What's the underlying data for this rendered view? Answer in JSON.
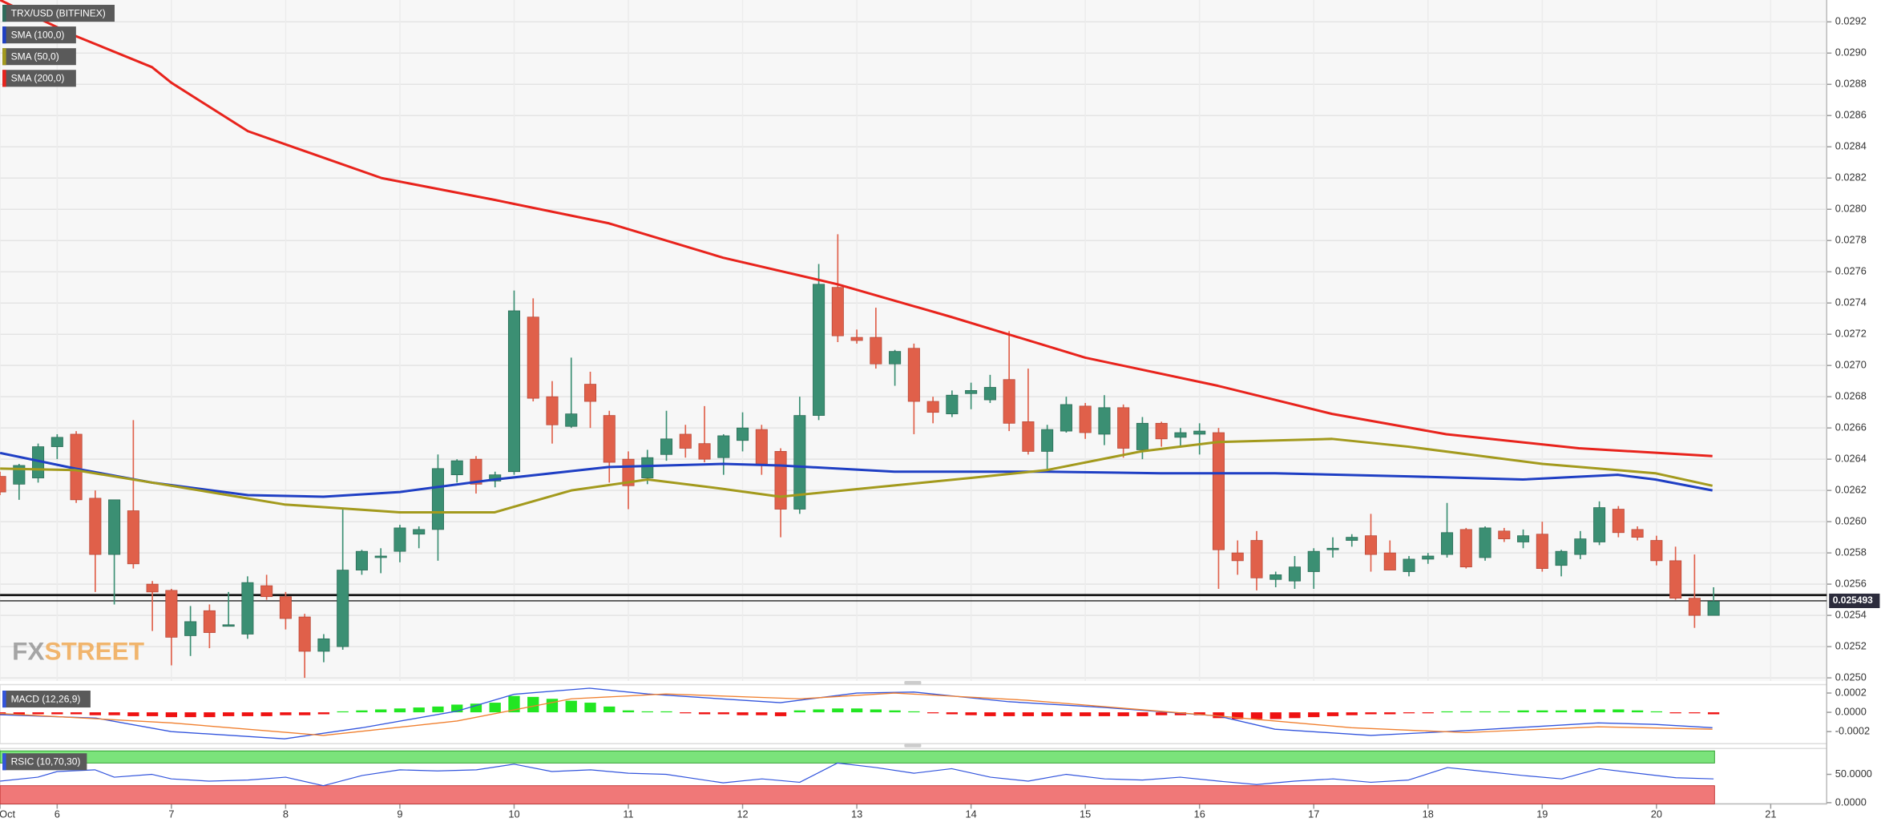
{
  "chart_data": {
    "type": "candlestick",
    "title": "TRX/USD (BITFINEX)",
    "up_color": "#3b8f73",
    "down_color": "#e0604a",
    "grid": true,
    "xlim": [
      5.5,
      21.49
    ],
    "xticks": [
      {
        "value": 5.5,
        "label": "Oct"
      },
      6,
      7,
      8,
      9,
      10,
      11,
      12,
      13,
      14,
      15,
      16,
      17,
      18,
      19,
      20,
      21
    ],
    "ylim": [
      0.02498,
      0.02934
    ],
    "yticks": [
      {
        "value": 0.025,
        "label": "0.0250"
      },
      0.0252,
      0.0254,
      0.0256,
      0.0258,
      {
        "value": 0.026,
        "label": "0.0260"
      },
      0.0262,
      0.0264,
      0.0266,
      0.0268,
      {
        "value": 0.027,
        "label": "0.0270"
      },
      0.0272,
      0.0274,
      0.0276,
      0.0278,
      {
        "value": 0.028,
        "label": "0.0280"
      },
      0.0282,
      0.0284,
      0.0286,
      0.0288,
      {
        "value": 0.029,
        "label": "0.0290"
      },
      0.0292
    ],
    "hlines": [
      0.02553
    ],
    "last_price": 0.025493,
    "watermark": [
      "FX",
      "STREET"
    ],
    "x": [
      5.5,
      5.6667,
      5.8333,
      6,
      6.1667,
      6.3333,
      6.5,
      6.6667,
      6.8333,
      7,
      7.1667,
      7.3333,
      7.5,
      7.6667,
      7.8333,
      8,
      8.1667,
      8.3333,
      8.5,
      8.6667,
      8.8333,
      9,
      9.1667,
      9.3333,
      9.5,
      9.6667,
      9.8333,
      10,
      10.1667,
      10.3333,
      10.5,
      10.6667,
      10.8333,
      11,
      11.1667,
      11.3333,
      11.5,
      11.6667,
      11.8333,
      12,
      12.1667,
      12.3333,
      12.5,
      12.6667,
      12.8333,
      13,
      13.1667,
      13.3333,
      13.5,
      13.6667,
      13.8333,
      14,
      14.1667,
      14.3333,
      14.5,
      14.6667,
      14.8333,
      15,
      15.1667,
      15.3333,
      15.5,
      15.6667,
      15.8333,
      16,
      16.1667,
      16.3333,
      16.5,
      16.6667,
      16.8333,
      17,
      17.1667,
      17.3333,
      17.5,
      17.6667,
      17.8333,
      18,
      18.1667,
      18.3333,
      18.5,
      18.6667,
      18.8333,
      19,
      19.1667,
      19.3333,
      19.5,
      19.6667,
      19.8333,
      20,
      20.1667,
      20.3333,
      20.5
    ],
    "open": [
      0.02629,
      0.02624,
      0.02628,
      0.02648,
      0.02656,
      0.02615,
      0.02579,
      0.02607,
      0.0256,
      0.02556,
      0.02527,
      0.02543,
      0.02533,
      0.02528,
      0.02559,
      0.02552,
      0.02539,
      0.02517,
      0.0252,
      0.02569,
      0.02577,
      0.02581,
      0.02592,
      0.02595,
      0.0263,
      0.0264,
      0.02626,
      0.02632,
      0.02731,
      0.0268,
      0.02661,
      0.02688,
      0.02668,
      0.0264,
      0.02628,
      0.02643,
      0.02656,
      0.0265,
      0.02641,
      0.02652,
      0.02659,
      0.02645,
      0.02608,
      0.02668,
      0.0275,
      0.02718,
      0.02718,
      0.02701,
      0.02711,
      0.02677,
      0.02669,
      0.02682,
      0.02678,
      0.02691,
      0.02664,
      0.02645,
      0.02658,
      0.02674,
      0.02656,
      0.02673,
      0.02646,
      0.02663,
      0.02654,
      0.02656,
      0.02657,
      0.0258,
      0.02588,
      0.02563,
      0.02562,
      0.02568,
      0.02582,
      0.02588,
      0.02591,
      0.0258,
      0.02568,
      0.02576,
      0.02579,
      0.02595,
      0.02577,
      0.02594,
      0.02587,
      0.02592,
      0.02572,
      0.02579,
      0.02587,
      0.02608,
      0.02595,
      0.02588,
      0.02575,
      0.02551,
      0.0254
    ],
    "high": [
      0.02632,
      0.02637,
      0.0265,
      0.02656,
      0.02658,
      0.0262,
      0.02614,
      0.02665,
      0.02562,
      0.02557,
      0.02546,
      0.02547,
      0.02555,
      0.02565,
      0.02566,
      0.02555,
      0.02541,
      0.02528,
      0.02608,
      0.02582,
      0.02583,
      0.02598,
      0.02597,
      0.02643,
      0.0264,
      0.02642,
      0.02632,
      0.02748,
      0.02743,
      0.0269,
      0.02705,
      0.02696,
      0.02671,
      0.02645,
      0.02646,
      0.02671,
      0.02662,
      0.02674,
      0.02656,
      0.0267,
      0.02662,
      0.02647,
      0.0268,
      0.02765,
      0.02784,
      0.02723,
      0.02737,
      0.0271,
      0.02714,
      0.0268,
      0.02684,
      0.02689,
      0.02694,
      0.02722,
      0.02698,
      0.02662,
      0.0268,
      0.02676,
      0.02681,
      0.02675,
      0.02667,
      0.02664,
      0.0266,
      0.02663,
      0.0266,
      0.02588,
      0.02594,
      0.02568,
      0.02578,
      0.02583,
      0.0259,
      0.02592,
      0.02605,
      0.02588,
      0.02578,
      0.0258,
      0.02612,
      0.02596,
      0.02597,
      0.02596,
      0.02595,
      0.026,
      0.02582,
      0.02594,
      0.02613,
      0.0261,
      0.02597,
      0.02591,
      0.02584,
      0.02579,
      0.02558
    ],
    "low": [
      0.02617,
      0.02614,
      0.02625,
      0.0264,
      0.02612,
      0.02555,
      0.02547,
      0.0257,
      0.0253,
      0.02508,
      0.02514,
      0.02519,
      0.02533,
      0.02525,
      0.0255,
      0.02531,
      0.025,
      0.0251,
      0.02518,
      0.02566,
      0.02567,
      0.02574,
      0.02583,
      0.02575,
      0.02625,
      0.02618,
      0.02622,
      0.0263,
      0.02677,
      0.0265,
      0.0266,
      0.0266,
      0.02625,
      0.02608,
      0.02624,
      0.02639,
      0.02641,
      0.02638,
      0.0263,
      0.02645,
      0.0263,
      0.0259,
      0.02605,
      0.02665,
      0.02715,
      0.02714,
      0.02698,
      0.02687,
      0.02656,
      0.02663,
      0.02667,
      0.02672,
      0.02676,
      0.02658,
      0.02643,
      0.02633,
      0.02657,
      0.02653,
      0.02649,
      0.02641,
      0.0264,
      0.02648,
      0.02648,
      0.02643,
      0.02557,
      0.02566,
      0.02556,
      0.02558,
      0.02557,
      0.02557,
      0.02577,
      0.02584,
      0.02568,
      0.02569,
      0.02565,
      0.02573,
      0.02577,
      0.0257,
      0.02575,
      0.02587,
      0.02583,
      0.02568,
      0.02565,
      0.02576,
      0.02585,
      0.0259,
      0.02588,
      0.02572,
      0.0255,
      0.02532,
      0.0254
    ],
    "close": [
      0.02619,
      0.02636,
      0.02648,
      0.02654,
      0.02614,
      0.02579,
      0.02614,
      0.02573,
      0.02555,
      0.02526,
      0.02536,
      0.02529,
      0.02534,
      0.02561,
      0.02552,
      0.02538,
      0.02517,
      0.02525,
      0.02569,
      0.02581,
      0.02578,
      0.02596,
      0.02595,
      0.02634,
      0.02639,
      0.02624,
      0.0263,
      0.02735,
      0.02679,
      0.02662,
      0.02669,
      0.02677,
      0.02638,
      0.02623,
      0.02641,
      0.02653,
      0.02647,
      0.0264,
      0.02655,
      0.0266,
      0.02637,
      0.02608,
      0.02668,
      0.02752,
      0.02719,
      0.02716,
      0.02701,
      0.02709,
      0.02677,
      0.0267,
      0.02681,
      0.02684,
      0.02686,
      0.02663,
      0.02645,
      0.02659,
      0.02675,
      0.02657,
      0.02673,
      0.02647,
      0.02663,
      0.02653,
      0.02657,
      0.02658,
      0.02582,
      0.02575,
      0.02564,
      0.02566,
      0.02571,
      0.02581,
      0.02583,
      0.0259,
      0.02579,
      0.02569,
      0.02576,
      0.02578,
      0.02593,
      0.02571,
      0.02596,
      0.02589,
      0.02591,
      0.0257,
      0.02581,
      0.02589,
      0.02609,
      0.02593,
      0.0259,
      0.02575,
      0.02551,
      0.0254,
      0.02549
    ],
    "series": [
      {
        "name": "SMA (100,0)",
        "color": "#1f3fc4",
        "x": [
          5.5,
          6.16,
          6.83,
          7.67,
          8.33,
          9,
          9.83,
          10.83,
          11.83,
          12.33,
          13.33,
          14.66,
          15.66,
          16.66,
          17.83,
          18.83,
          19.66,
          19.99,
          20.49
        ],
        "values": [
          0.02644,
          0.02634,
          0.02625,
          0.02617,
          0.02616,
          0.02619,
          0.02627,
          0.02635,
          0.02637,
          0.02636,
          0.02632,
          0.02632,
          0.02631,
          0.02631,
          0.02629,
          0.02627,
          0.0263,
          0.02627,
          0.0262
        ]
      },
      {
        "name": "SMA (50,0)",
        "color": "#a39a1d",
        "x": [
          5.5,
          6.16,
          7,
          7.99,
          9,
          9.83,
          10.5,
          11.17,
          11.83,
          12.33,
          13.16,
          14,
          14.66,
          15.49,
          16.16,
          17.16,
          17.83,
          19,
          19.99,
          20.49
        ],
        "values": [
          0.02634,
          0.02633,
          0.02623,
          0.02611,
          0.02606,
          0.02606,
          0.0262,
          0.02627,
          0.02621,
          0.02616,
          0.02622,
          0.02628,
          0.02633,
          0.02645,
          0.02651,
          0.02653,
          0.02648,
          0.02637,
          0.02631,
          0.02623
        ]
      },
      {
        "name": "SMA (200,0)",
        "color": "#e8231c",
        "x": [
          5.5,
          6.16,
          6.83,
          7,
          7.67,
          8.84,
          9.83,
          10.83,
          11.83,
          12.83,
          13.83,
          15,
          16.16,
          17.16,
          18.16,
          19.32,
          20.49
        ],
        "values": [
          0.02934,
          0.02911,
          0.02891,
          0.02881,
          0.0285,
          0.0282,
          0.02806,
          0.02791,
          0.02769,
          0.02752,
          0.02731,
          0.02705,
          0.02687,
          0.02669,
          0.02656,
          0.02647,
          0.02642
        ]
      }
    ],
    "macd": {
      "title": "MACD (12,26,9)",
      "ylim": [
        -0.000325,
        0.0002875
      ],
      "yticks": [
        -0.0002,
        {
          "value": 0,
          "label": "0.0000"
        },
        0.0002
      ],
      "pos_color": "#22e622",
      "neg_color": "#ee1111",
      "histogram": [
        -3e-05,
        -3e-05,
        -2e-05,
        -2e-05,
        -2e-05,
        -3e-05,
        -3e-05,
        -4e-05,
        -4e-05,
        -5e-05,
        -5e-05,
        -5e-05,
        -4e-05,
        -4e-05,
        -4e-05,
        -3e-05,
        -3e-05,
        -2e-05,
        1e-05,
        2e-05,
        3e-05,
        4e-05,
        5e-05,
        6e-05,
        8e-05,
        9e-05,
        0.0001,
        0.00017,
        0.00016,
        0.00014,
        0.00012,
        0.0001,
        6e-05,
        2e-05,
        1e-05,
        1e-05,
        -1e-05,
        -2e-05,
        -2e-05,
        -3e-05,
        -3e-05,
        -4e-05,
        2e-05,
        3e-05,
        4e-05,
        4e-05,
        3e-05,
        2e-05,
        1e-05,
        -1e-05,
        -2e-05,
        -3e-05,
        -4e-05,
        -4e-05,
        -4e-05,
        -4e-05,
        -4e-05,
        -4e-05,
        -4e-05,
        -4e-05,
        -4e-05,
        -3e-05,
        -3e-05,
        -3e-05,
        -6e-05,
        -7e-05,
        -7e-05,
        -7e-05,
        -6e-05,
        -5e-05,
        -4e-05,
        -3e-05,
        -2e-05,
        -2e-05,
        -1e-05,
        -1e-05,
        1e-05,
        1e-05,
        1e-05,
        1e-05,
        2e-05,
        2e-05,
        2e-05,
        3e-05,
        3e-05,
        3e-05,
        2e-05,
        1e-05,
        -1e-05,
        -1e-05,
        -2e-05
      ],
      "lines": [
        {
          "color": "#3355dd",
          "x": [
            5.5,
            6.34,
            7,
            7.99,
            8.67,
            9.5,
            10,
            10.66,
            11.17,
            12.33,
            13,
            13.5,
            14.33,
            15.17,
            16.16,
            16.66,
            17.5,
            18.33,
            19.49,
            19.99,
            20.49
          ],
          "values": [
            -2.5e-05,
            -6e-05,
            -0.0002,
            -0.000275,
            -0.00016,
            1.25e-05,
            0.0001875,
            0.00025,
            0.00019,
            0.0001,
            0.0002,
            0.00021,
            0.00011,
            5e-05,
            -3.75e-05,
            -0.000175,
            -0.00024,
            -0.00019,
            -0.00011,
            -0.000125,
            -0.00016
          ]
        },
        {
          "color": "#f08030",
          "x": [
            5.5,
            7,
            8.33,
            9.5,
            10.5,
            11.33,
            12.5,
            13.33,
            14.49,
            16.16,
            17.33,
            18.33,
            19.49,
            20.49
          ],
          "values": [
            -1.25e-05,
            -0.00011,
            -0.00024,
            -9e-05,
            0.00014,
            0.00019,
            0.00014,
            0.0002,
            0.000125,
            -3.75e-05,
            -0.00016,
            -0.00021,
            -0.00015,
            -0.000175
          ]
        }
      ]
    },
    "rsi": {
      "title": "RSIC (10,70,30)",
      "ylim": [
        -2.2,
        95.7
      ],
      "yticks": [
        {
          "value": 0,
          "label": "0.0000"
        },
        {
          "value": 50,
          "label": "50.0000"
        }
      ],
      "upper_band": 70,
      "lower_band": 30,
      "band_colors": [
        "#7be37b",
        "#f07878"
      ],
      "line": {
        "color": "#3355dd",
        "x": [
          5.5,
          5.83,
          6,
          6.33,
          6.5,
          6.83,
          7,
          7.33,
          7.67,
          8,
          8.33,
          8.67,
          9,
          9.33,
          9.67,
          10,
          10.33,
          10.67,
          11,
          11.33,
          11.83,
          12.17,
          12.5,
          12.83,
          13.17,
          13.5,
          13.83,
          14.17,
          14.5,
          14.83,
          15.17,
          15.5,
          15.83,
          16.17,
          16.5,
          16.83,
          17.17,
          17.5,
          17.83,
          18.17,
          18.5,
          18.83,
          19.17,
          19.5,
          19.83,
          20.17,
          20.5
        ],
        "values": [
          38,
          45,
          55,
          58,
          45,
          50,
          42,
          38,
          40,
          45,
          30,
          48,
          58,
          56,
          58,
          68,
          55,
          58,
          52,
          50,
          35,
          42,
          36,
          70,
          62,
          52,
          60,
          45,
          38,
          50,
          42,
          40,
          45,
          38,
          32,
          38,
          42,
          36,
          40,
          62,
          55,
          48,
          42,
          60,
          52,
          44,
          42
        ]
      }
    }
  }
}
